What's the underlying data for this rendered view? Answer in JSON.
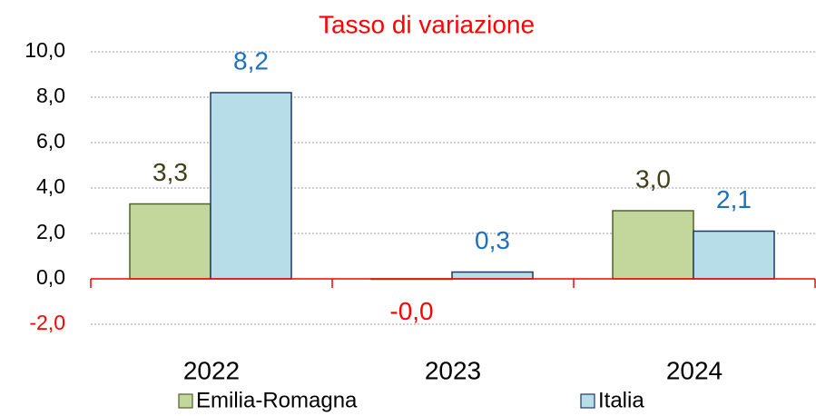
{
  "chart_data": {
    "type": "bar",
    "title": "Tasso di variazione",
    "categories": [
      "2022",
      "2023",
      "2024"
    ],
    "series": [
      {
        "name": "Emilia-Romagna",
        "color": "#c3d69b",
        "edge_color": "#4f6228",
        "label_color": "#3f3f1a",
        "values": [
          3.3,
          -0.02,
          3.0
        ],
        "value_labels": [
          "3,3",
          "-0,0",
          "3,0"
        ]
      },
      {
        "name": "Italia",
        "color": "#b7dee8",
        "edge_color": "#1f3864",
        "label_color": "#1f6fc1",
        "values": [
          8.2,
          0.3,
          2.1
        ],
        "value_labels": [
          "8,2",
          "0,3",
          "2,1"
        ]
      }
    ],
    "ylim": [
      -2,
      10
    ],
    "yticks": [
      {
        "value": -2,
        "label": "-2,0"
      },
      {
        "value": 0,
        "label": "0,0"
      },
      {
        "value": 2,
        "label": "2,0"
      },
      {
        "value": 4,
        "label": "4,0"
      },
      {
        "value": 6,
        "label": "6,0"
      },
      {
        "value": 8,
        "label": "8,0"
      },
      {
        "value": 10,
        "label": "10,0"
      }
    ],
    "grid": true,
    "title_color": "#ff0000",
    "negative_color": "#ff0000",
    "axis_color": "#ff0000",
    "legend": "bottom"
  }
}
